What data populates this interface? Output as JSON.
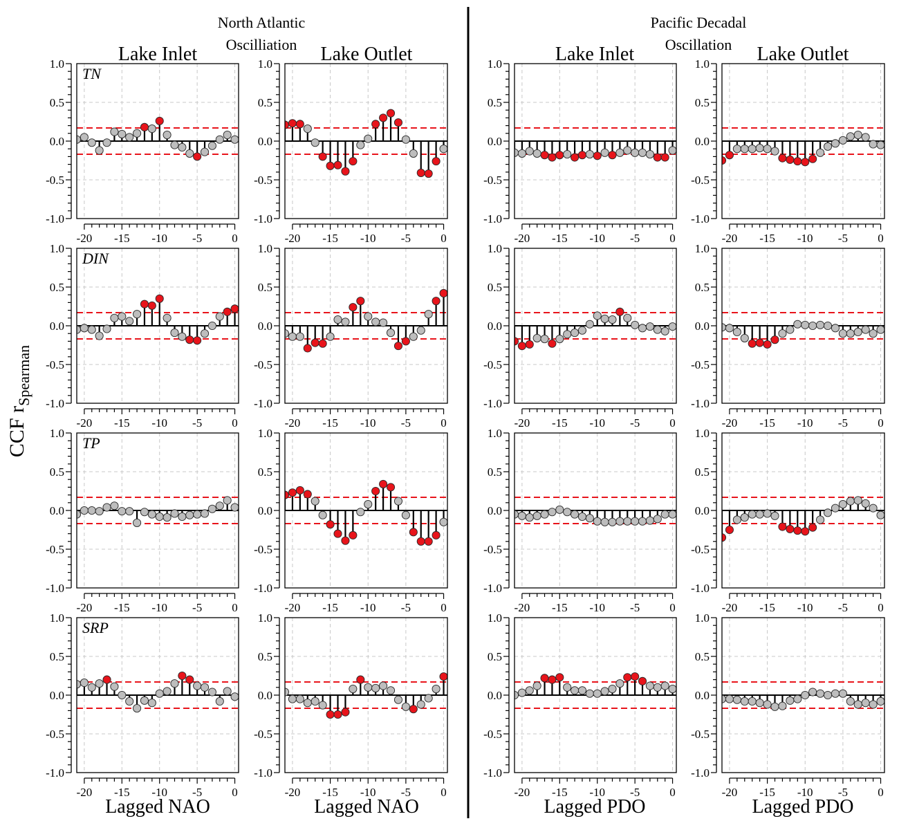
{
  "figure": {
    "group_titles": [
      {
        "lines": [
          "North Atlantic",
          "Oscilliation"
        ]
      },
      {
        "lines": [
          "Pacific Decadal",
          "Oscillation"
        ]
      }
    ],
    "column_titles": [
      "Lake Inlet",
      "Lake Outlet",
      "Lake Inlet",
      "Lake Outlet"
    ],
    "x_labels": [
      "Lagged NAO",
      "Lagged NAO",
      "Lagged PDO",
      "Lagged PDO"
    ],
    "y_label": {
      "main": "CCF r",
      "subscript": "Spearman"
    },
    "row_labels": [
      "TN",
      "DIN",
      "TP",
      "SRP"
    ]
  },
  "colors": {
    "significant": "#e8141b",
    "nonsignificant": "#bdbdbd",
    "stem": "#000000",
    "threshold": "#e8141b",
    "grid": "#c8c8c8"
  },
  "chart_data": {
    "type": "scatter",
    "style": "lollipop stem plot (cross-correlation function), 4 rows x 4 columns of panels",
    "x": [
      -21,
      -20,
      -19,
      -18,
      -17,
      -16,
      -15,
      -14,
      -13,
      -12,
      -11,
      -10,
      -9,
      -8,
      -7,
      -6,
      -5,
      -4,
      -3,
      -2,
      -1,
      0,
      1
    ],
    "xlim": [
      -21,
      0.5
    ],
    "ylim": [
      -1.0,
      1.0
    ],
    "xticks": [
      -20,
      -15,
      -10,
      -5,
      0
    ],
    "yticks": [
      1.0,
      0.5,
      0.0,
      -0.5,
      -1.0
    ],
    "ytick_labels": [
      "1.0",
      "0.5",
      "0.0",
      "-0.5",
      "-1.0"
    ],
    "significance_threshold": 0.17,
    "grid": true,
    "note_significance": "points with |r| above the dashed threshold are red, others gray",
    "panels": [
      {
        "row": "TN",
        "column": "Lake Inlet",
        "xlabel": "Lagged NAO",
        "values": [
          0.02,
          0.05,
          -0.02,
          -0.12,
          -0.02,
          0.12,
          0.09,
          0.05,
          0.1,
          0.18,
          0.16,
          0.26,
          0.08,
          -0.05,
          -0.08,
          -0.16,
          -0.2,
          -0.14,
          -0.06,
          0.02,
          0.08,
          0.02,
          0.05
        ]
      },
      {
        "row": "TN",
        "column": "Lake Outlet",
        "xlabel": "Lagged NAO",
        "values": [
          0.21,
          0.23,
          0.22,
          0.16,
          -0.02,
          -0.2,
          -0.32,
          -0.31,
          -0.39,
          -0.26,
          -0.05,
          0.03,
          0.22,
          0.3,
          0.36,
          0.24,
          0.02,
          -0.16,
          -0.41,
          -0.42,
          -0.26,
          -0.1,
          0.05
        ]
      },
      {
        "row": "TN",
        "column": "Lake Inlet",
        "xlabel": "Lagged PDO",
        "values": [
          -0.15,
          -0.16,
          -0.13,
          -0.16,
          -0.18,
          -0.21,
          -0.18,
          -0.17,
          -0.21,
          -0.18,
          -0.17,
          -0.19,
          -0.15,
          -0.18,
          -0.15,
          -0.12,
          -0.15,
          -0.15,
          -0.17,
          -0.21,
          -0.21,
          -0.12,
          -0.1
        ]
      },
      {
        "row": "TN",
        "column": "Lake Outlet",
        "xlabel": "Lagged PDO",
        "values": [
          -0.25,
          -0.18,
          -0.1,
          -0.1,
          -0.1,
          -0.09,
          -0.1,
          -0.13,
          -0.22,
          -0.24,
          -0.26,
          -0.27,
          -0.23,
          -0.15,
          -0.07,
          -0.03,
          0.01,
          0.06,
          0.08,
          0.05,
          -0.04,
          -0.05,
          -0.07
        ]
      },
      {
        "row": "DIN",
        "column": "Lake Inlet",
        "xlabel": "Lagged NAO",
        "values": [
          -0.05,
          -0.03,
          -0.05,
          -0.13,
          -0.04,
          0.1,
          0.12,
          0.06,
          0.15,
          0.28,
          0.26,
          0.35,
          0.1,
          -0.09,
          -0.14,
          -0.18,
          -0.19,
          -0.1,
          0.0,
          0.12,
          0.18,
          0.22,
          0.2
        ]
      },
      {
        "row": "DIN",
        "column": "Lake Outlet",
        "xlabel": "Lagged NAO",
        "values": [
          -0.1,
          -0.14,
          -0.14,
          -0.29,
          -0.22,
          -0.23,
          -0.14,
          0.08,
          0.05,
          0.24,
          0.32,
          0.12,
          0.05,
          0.04,
          -0.09,
          -0.26,
          -0.2,
          -0.14,
          -0.06,
          0.15,
          0.32,
          0.42,
          0.38
        ]
      },
      {
        "row": "DIN",
        "column": "Lake Inlet",
        "xlabel": "Lagged PDO",
        "values": [
          -0.2,
          -0.26,
          -0.24,
          -0.16,
          -0.17,
          -0.23,
          -0.17,
          -0.11,
          -0.09,
          -0.06,
          0.02,
          0.13,
          0.09,
          0.08,
          0.18,
          0.1,
          0.01,
          -0.03,
          -0.01,
          -0.05,
          -0.07,
          -0.01,
          0.0
        ]
      },
      {
        "row": "DIN",
        "column": "Lake Outlet",
        "xlabel": "Lagged PDO",
        "values": [
          -0.02,
          -0.03,
          -0.08,
          -0.16,
          -0.23,
          -0.22,
          -0.24,
          -0.18,
          -0.1,
          -0.05,
          0.02,
          0.01,
          0.0,
          0.01,
          0.0,
          -0.03,
          -0.1,
          -0.1,
          -0.08,
          -0.05,
          -0.1,
          -0.05,
          0.0
        ]
      },
      {
        "row": "TP",
        "column": "Lake Inlet",
        "xlabel": "Lagged NAO",
        "values": [
          -0.05,
          0.0,
          0.0,
          -0.01,
          0.04,
          0.06,
          -0.01,
          -0.01,
          -0.16,
          -0.02,
          -0.05,
          -0.08,
          -0.09,
          -0.04,
          -0.08,
          -0.06,
          -0.05,
          -0.04,
          0.02,
          0.06,
          0.13,
          0.04,
          0.02
        ]
      },
      {
        "row": "TP",
        "column": "Lake Outlet",
        "xlabel": "Lagged NAO",
        "values": [
          0.2,
          0.23,
          0.26,
          0.21,
          0.12,
          -0.06,
          -0.18,
          -0.3,
          -0.39,
          -0.32,
          -0.02,
          0.08,
          0.25,
          0.34,
          0.3,
          0.12,
          -0.06,
          -0.28,
          -0.4,
          -0.4,
          -0.32,
          -0.15,
          -0.06
        ]
      },
      {
        "row": "TP",
        "column": "Lake Inlet",
        "xlabel": "Lagged PDO",
        "values": [
          -0.05,
          -0.07,
          -0.09,
          -0.07,
          -0.05,
          -0.02,
          0.01,
          -0.02,
          -0.05,
          -0.08,
          -0.1,
          -0.14,
          -0.15,
          -0.15,
          -0.14,
          -0.14,
          -0.14,
          -0.14,
          -0.13,
          -0.11,
          -0.05,
          -0.05,
          -0.07
        ]
      },
      {
        "row": "TP",
        "column": "Lake Outlet",
        "xlabel": "Lagged PDO",
        "values": [
          -0.35,
          -0.25,
          -0.12,
          -0.09,
          -0.05,
          -0.05,
          -0.04,
          -0.07,
          -0.21,
          -0.24,
          -0.26,
          -0.27,
          -0.22,
          -0.12,
          -0.03,
          0.03,
          0.08,
          0.12,
          0.13,
          0.09,
          0.03,
          -0.06,
          -0.08
        ]
      },
      {
        "row": "SRP",
        "column": "Lake Inlet",
        "xlabel": "Lagged NAO",
        "values": [
          0.14,
          0.16,
          0.1,
          0.15,
          0.2,
          0.11,
          0.0,
          -0.08,
          -0.17,
          -0.07,
          -0.1,
          0.02,
          0.05,
          0.15,
          0.25,
          0.2,
          0.12,
          0.1,
          0.04,
          -0.08,
          0.05,
          -0.02,
          0.03
        ]
      },
      {
        "row": "SRP",
        "column": "Lake Outlet",
        "xlabel": "Lagged NAO",
        "values": [
          0.04,
          -0.05,
          -0.05,
          -0.1,
          -0.08,
          -0.13,
          -0.25,
          -0.25,
          -0.22,
          0.08,
          0.2,
          0.1,
          0.09,
          0.12,
          0.06,
          -0.06,
          -0.15,
          -0.18,
          -0.12,
          -0.04,
          0.08,
          0.24,
          0.28
        ]
      },
      {
        "row": "SRP",
        "column": "Lake Inlet",
        "xlabel": "Lagged PDO",
        "values": [
          0.0,
          0.03,
          0.06,
          0.12,
          0.22,
          0.2,
          0.23,
          0.1,
          0.06,
          0.06,
          0.02,
          0.02,
          0.05,
          0.08,
          0.15,
          0.23,
          0.24,
          0.18,
          0.12,
          0.1,
          0.12,
          0.08,
          0.04
        ]
      },
      {
        "row": "SRP",
        "column": "Lake Outlet",
        "xlabel": "Lagged PDO",
        "values": [
          -0.05,
          -0.05,
          -0.06,
          -0.08,
          -0.08,
          -0.1,
          -0.12,
          -0.15,
          -0.14,
          -0.07,
          -0.05,
          0.0,
          0.04,
          0.02,
          0.0,
          0.02,
          0.02,
          -0.08,
          -0.12,
          -0.1,
          -0.12,
          -0.08,
          -0.05
        ]
      }
    ]
  }
}
